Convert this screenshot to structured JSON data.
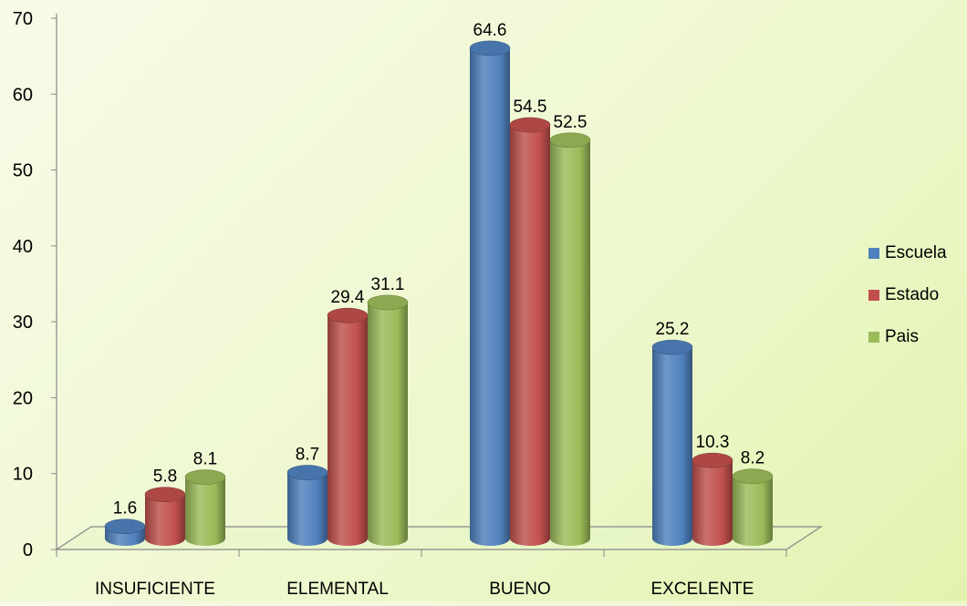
{
  "chart_data": {
    "type": "bar",
    "categories": [
      "INSUFICIENTE",
      "ELEMENTAL",
      "BUENO",
      "EXCELENTE"
    ],
    "series": [
      {
        "name": "Escuela",
        "color": "#4f81bd",
        "values": [
          1.6,
          8.7,
          64.6,
          25.2
        ]
      },
      {
        "name": "Estado",
        "color": "#c0504d",
        "values": [
          5.8,
          29.4,
          54.5,
          10.3
        ]
      },
      {
        "name": "Pais",
        "color": "#9bbb59",
        "values": [
          8.1,
          31.1,
          52.5,
          8.2
        ]
      }
    ],
    "yticks": [
      0,
      10,
      20,
      30,
      40,
      50,
      60,
      70
    ],
    "ylim": [
      0,
      70
    ],
    "title": "",
    "xlabel": "",
    "ylabel": "",
    "legend_position": "right",
    "style": "3d-cylinder",
    "grid": false
  }
}
